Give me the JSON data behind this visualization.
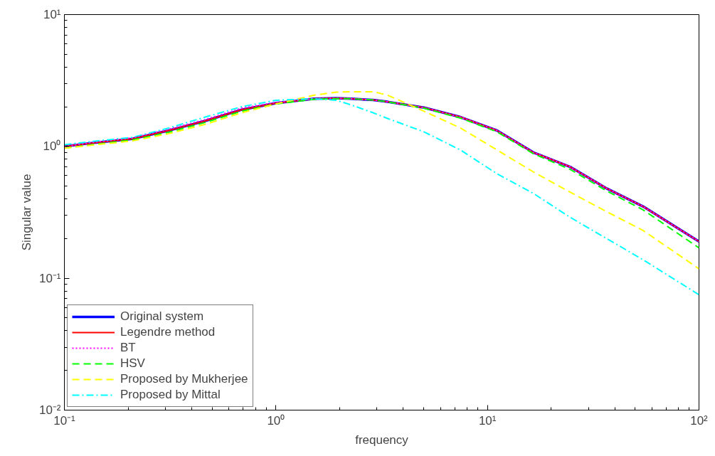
{
  "chart_data": {
    "type": "line",
    "xlabel": "frequency",
    "ylabel": "Singular value",
    "log": "xy",
    "grid": false,
    "legend": "bottom left",
    "x": [
      0.1,
      0.141,
      0.209,
      0.311,
      0.463,
      0.689,
      1.0,
      1.52,
      1.93,
      2.26,
      2.88,
      3.37,
      5.01,
      7.45,
      11.1,
      16.5,
      24.6,
      36.6,
      54.5,
      100
    ],
    "xlim": [
      0.1,
      100
    ],
    "ylim": [
      0.01,
      10
    ],
    "xticks": [
      {
        "value": 0.1,
        "label": "10⁻¹"
      },
      {
        "value": 1,
        "label": "10⁰"
      },
      {
        "value": 10,
        "label": "10¹"
      },
      {
        "value": 100,
        "label": "10²"
      }
    ],
    "yticks": [
      {
        "value": 0.01,
        "label": "10⁻²"
      },
      {
        "value": 0.1,
        "label": "10⁻¹"
      },
      {
        "value": 1,
        "label": "10⁰"
      },
      {
        "value": 10,
        "label": "10¹"
      }
    ],
    "series": [
      {
        "name": "Original system",
        "color": "#0000ff",
        "line_style": "solid",
        "values": [
          1.0,
          1.07,
          1.14,
          1.32,
          1.56,
          1.9,
          2.13,
          2.3,
          2.32,
          2.3,
          2.25,
          2.18,
          1.97,
          1.67,
          1.32,
          0.9,
          0.7,
          0.48,
          0.35,
          0.19
        ]
      },
      {
        "name": "Legendre method",
        "color": "#ff0000",
        "line_style": "solid",
        "values": [
          1.0,
          1.07,
          1.14,
          1.32,
          1.56,
          1.9,
          2.13,
          2.3,
          2.32,
          2.3,
          2.25,
          2.18,
          1.97,
          1.67,
          1.32,
          0.9,
          0.7,
          0.48,
          0.35,
          0.19
        ]
      },
      {
        "name": "BT",
        "color": "#ff00ff",
        "line_style": "dotted",
        "values": [
          1.0,
          1.08,
          1.16,
          1.35,
          1.6,
          1.95,
          2.16,
          2.3,
          2.32,
          2.3,
          2.25,
          2.18,
          1.97,
          1.67,
          1.32,
          0.9,
          0.7,
          0.48,
          0.35,
          0.19
        ]
      },
      {
        "name": "HSV",
        "color": "#00ff00",
        "line_style": "dashed",
        "values": [
          0.97,
          1.04,
          1.12,
          1.28,
          1.52,
          1.85,
          2.1,
          2.28,
          2.3,
          2.3,
          2.25,
          2.18,
          1.95,
          1.64,
          1.29,
          0.88,
          0.67,
          0.46,
          0.33,
          0.17
        ]
      },
      {
        "name": "Proposed by Mukherjee",
        "color": "#ffff00",
        "line_style": "dashed",
        "values": [
          0.97,
          1.03,
          1.1,
          1.25,
          1.47,
          1.8,
          2.1,
          2.45,
          2.58,
          2.6,
          2.6,
          2.45,
          1.85,
          1.38,
          0.94,
          0.64,
          0.45,
          0.32,
          0.23,
          0.118
        ]
      },
      {
        "name": "Proposed by Mittal",
        "color": "#00ffff",
        "line_style": "dashdot",
        "values": [
          1.03,
          1.1,
          1.17,
          1.38,
          1.67,
          2.0,
          2.24,
          2.3,
          2.24,
          2.07,
          1.8,
          1.63,
          1.29,
          0.94,
          0.62,
          0.44,
          0.29,
          0.2,
          0.138,
          0.075
        ]
      }
    ]
  }
}
